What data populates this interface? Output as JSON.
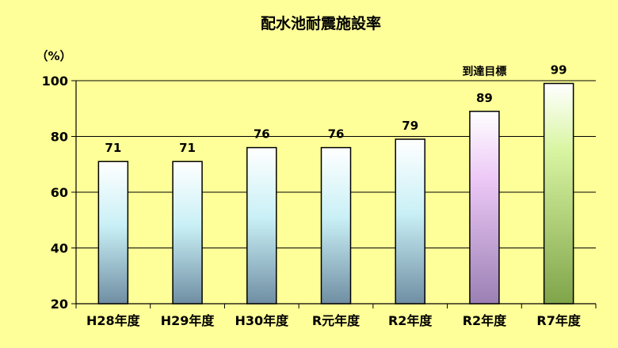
{
  "chart_data": {
    "type": "bar",
    "title": "配水池耐震施設率",
    "ylabel": "（%）",
    "xlabel": "",
    "categories": [
      "H28年度",
      "H29年度",
      "H30年度",
      "R元年度",
      "R2年度",
      "R2年度",
      "R7年度"
    ],
    "values": [
      71,
      71,
      76,
      76,
      79,
      89,
      99
    ],
    "data_labels": [
      "71",
      "71",
      "76",
      "76",
      "79",
      "89",
      "99"
    ],
    "ylim": [
      20,
      100
    ],
    "yticks": [
      20,
      40,
      60,
      80,
      100
    ],
    "ytick_labels": [
      "20",
      "40",
      "60",
      "80",
      "100"
    ],
    "grid": true,
    "legend": "none",
    "annotation": {
      "text": "到達目標",
      "category_index": 5
    },
    "colors": {
      "background": "#ffff99",
      "grid": "#000000",
      "bar_actual_top": "#ffffff",
      "bar_actual_mid": "#c9f0f6",
      "bar_actual_bottom": "#6f8ea3",
      "bar_target": "#e6b8f2",
      "bar_target_future": "#c2ec7a"
    },
    "bar_styles": [
      "actual",
      "actual",
      "actual",
      "actual",
      "actual",
      "target",
      "future"
    ]
  }
}
